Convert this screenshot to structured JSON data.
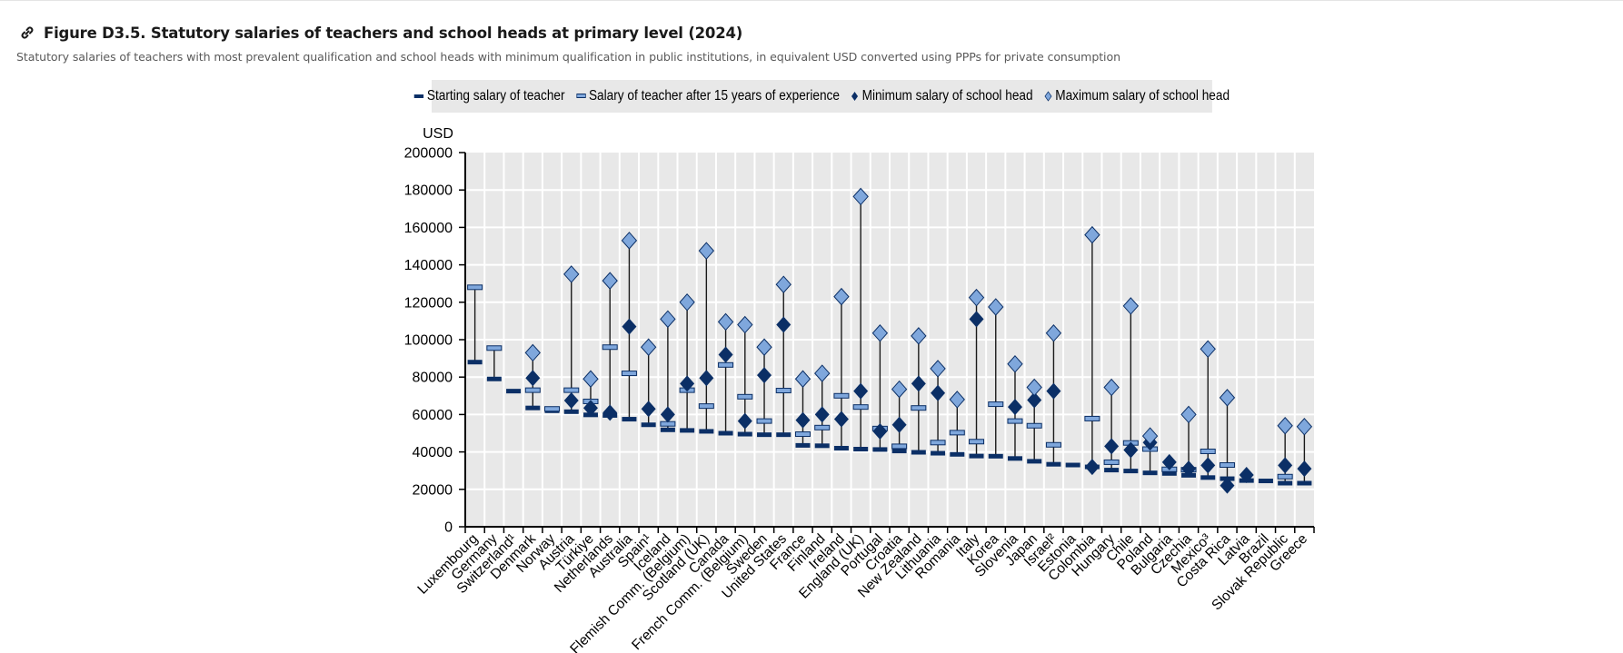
{
  "header": {
    "title": "Figure D3.5. Statutory salaries of teachers and school heads at primary level (2024)",
    "subtitle": "Statutory salaries of teachers with most prevalent qualification and school heads with minimum qualification in public institutions, in equivalent USD converted using PPPs for private consumption",
    "link_icon": "link-icon"
  },
  "colors": {
    "dark": "#0b2f66",
    "light": "#7fa7dc",
    "plot_bg": "#e8e8e8",
    "grid": "#ffffff",
    "stem": "#1a1a1a"
  },
  "chart_data": {
    "type": "scatter",
    "title": "Figure D3.5. Statutory salaries of teachers and school heads at primary level (2024)",
    "ylabel": "USD",
    "xlabel": "",
    "ylim": [
      0,
      200000
    ],
    "yticks": [
      "0",
      "20000",
      "40000",
      "60000",
      "80000",
      "100000",
      "120000",
      "140000",
      "160000",
      "180000",
      "200000"
    ],
    "grid": true,
    "legend_position": "top",
    "categories": [
      "Luxembourg",
      "Germany",
      "Switzerland¹",
      "Denmark",
      "Norway",
      "Austria",
      "Türkiye",
      "Netherlands",
      "Australia",
      "Spain¹",
      "Iceland",
      "Flemish Comm. (Belgium)",
      "Scotland (UK)",
      "Canada",
      "French Comm. (Belgium)",
      "Sweden",
      "United States",
      "France",
      "Finland",
      "Ireland",
      "England (UK)",
      "Portugal",
      "Croatia",
      "New Zealand",
      "Lithuania",
      "Romania",
      "Italy",
      "Korea",
      "Slovenia",
      "Japan",
      "Israel²",
      "Estonia",
      "Colombia",
      "Hungary",
      "Chile",
      "Poland",
      "Bulgaria",
      "Czechia",
      "Mexico³",
      "Costa Rica",
      "Latvia",
      "Brazil",
      "Slovak Republic",
      "Greece"
    ],
    "series": [
      {
        "name": "Starting salary  of teacher",
        "marker": "bar-dark",
        "values": [
          88000,
          79000,
          72500,
          63500,
          62000,
          61500,
          59800,
          59500,
          57500,
          54500,
          51800,
          51500,
          51000,
          50000,
          49500,
          49200,
          49200,
          43500,
          43300,
          42000,
          41500,
          41300,
          40500,
          39800,
          39300,
          38700,
          37800,
          37700,
          36500,
          35000,
          33400,
          33000,
          32000,
          30300,
          29800,
          28800,
          28500,
          27500,
          26300,
          25700,
          24700,
          24500,
          23300,
          23300
        ]
      },
      {
        "name": "Salary of teacher after 15 years of experience",
        "marker": "bar-light",
        "values": [
          128000,
          95500,
          null,
          73000,
          63000,
          73000,
          67000,
          96000,
          82000,
          null,
          55000,
          73000,
          64500,
          86500,
          69500,
          56500,
          72800,
          49500,
          53000,
          70000,
          64000,
          52500,
          43000,
          63500,
          45000,
          50300,
          45500,
          65500,
          56500,
          54000,
          43800,
          null,
          57800,
          34500,
          44800,
          41500,
          30700,
          30500,
          40300,
          33000,
          null,
          null,
          26800,
          null
        ]
      },
      {
        "name": "Minimum salary  of school head",
        "marker": "diamond-dark",
        "values": [
          null,
          null,
          null,
          79500,
          null,
          67500,
          63500,
          61000,
          107000,
          63000,
          60000,
          76500,
          79500,
          92000,
          56500,
          81000,
          108000,
          57000,
          60000,
          57500,
          72500,
          51000,
          54500,
          76500,
          71500,
          null,
          111000,
          null,
          64000,
          67700,
          72500,
          null,
          32000,
          43000,
          41000,
          45000,
          34500,
          31000,
          32800,
          22000,
          27700,
          null,
          32800,
          31000
        ]
      },
      {
        "name": "Maximum salary of school head",
        "marker": "diamond-light",
        "values": [
          null,
          null,
          null,
          93000,
          null,
          135000,
          79000,
          131500,
          153000,
          96000,
          111000,
          120000,
          147500,
          109500,
          108000,
          96000,
          129500,
          79000,
          82000,
          123000,
          176500,
          103500,
          73500,
          102000,
          84500,
          68000,
          122500,
          117500,
          87000,
          74500,
          103500,
          null,
          156000,
          74500,
          118000,
          48500,
          null,
          60000,
          95000,
          69000,
          null,
          null,
          54000,
          53500
        ]
      }
    ]
  }
}
